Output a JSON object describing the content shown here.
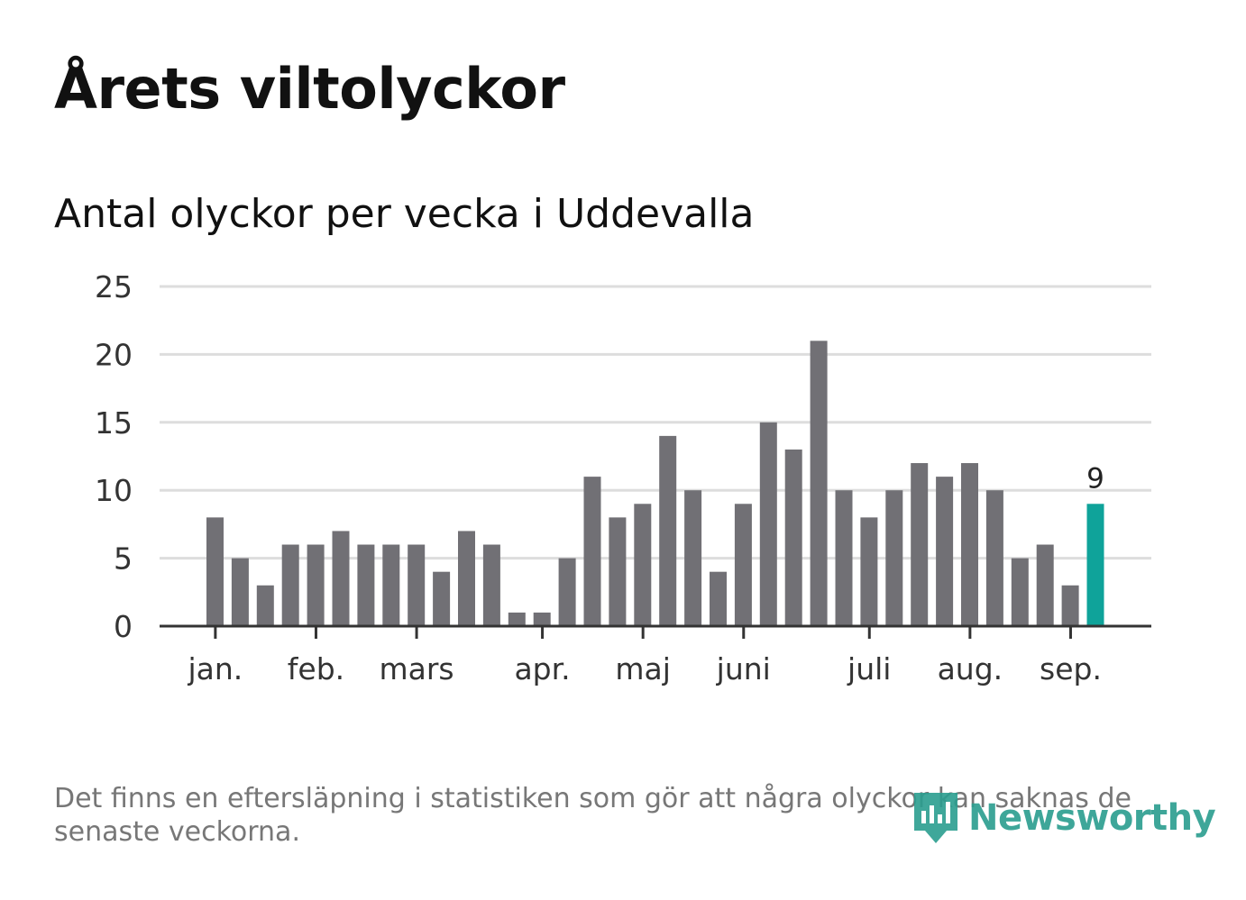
{
  "title": "Årets viltolyckor",
  "subtitle": "Antal olyckor per vecka i Uddevalla",
  "footnote": "Det finns en eftersläpning i statistiken som gör att några olyckor kan saknas de senaste veckorna.",
  "logo": {
    "text": "Newsworthy",
    "icon": "bar-chart-badge-icon",
    "color": "#2a9d8f"
  },
  "colors": {
    "bar": "#717075",
    "highlight": "#0fa39a",
    "grid": "#dddddd",
    "axis": "#333333"
  },
  "chart_data": {
    "type": "bar",
    "ylim": [
      0,
      25
    ],
    "yticks": [
      0,
      5,
      10,
      15,
      20,
      25
    ],
    "grid": true,
    "values": [
      8,
      5,
      3,
      6,
      6,
      7,
      6,
      6,
      6,
      4,
      7,
      6,
      1,
      1,
      5,
      11,
      8,
      9,
      14,
      10,
      4,
      9,
      15,
      13,
      21,
      10,
      8,
      10,
      12,
      11,
      12,
      10,
      5,
      6,
      3,
      9
    ],
    "highlight_index": 35,
    "highlight_label": "9",
    "month_labels": [
      {
        "label": "jan.",
        "bar_index": 0.3
      },
      {
        "label": "feb.",
        "bar_index": 4.3
      },
      {
        "label": "mars",
        "bar_index": 8.3
      },
      {
        "label": "apr.",
        "bar_index": 13.3
      },
      {
        "label": "maj",
        "bar_index": 17.3
      },
      {
        "label": "juni",
        "bar_index": 21.3
      },
      {
        "label": "juli",
        "bar_index": 26.3
      },
      {
        "label": "aug.",
        "bar_index": 30.3
      },
      {
        "label": "sep.",
        "bar_index": 34.3
      }
    ]
  }
}
